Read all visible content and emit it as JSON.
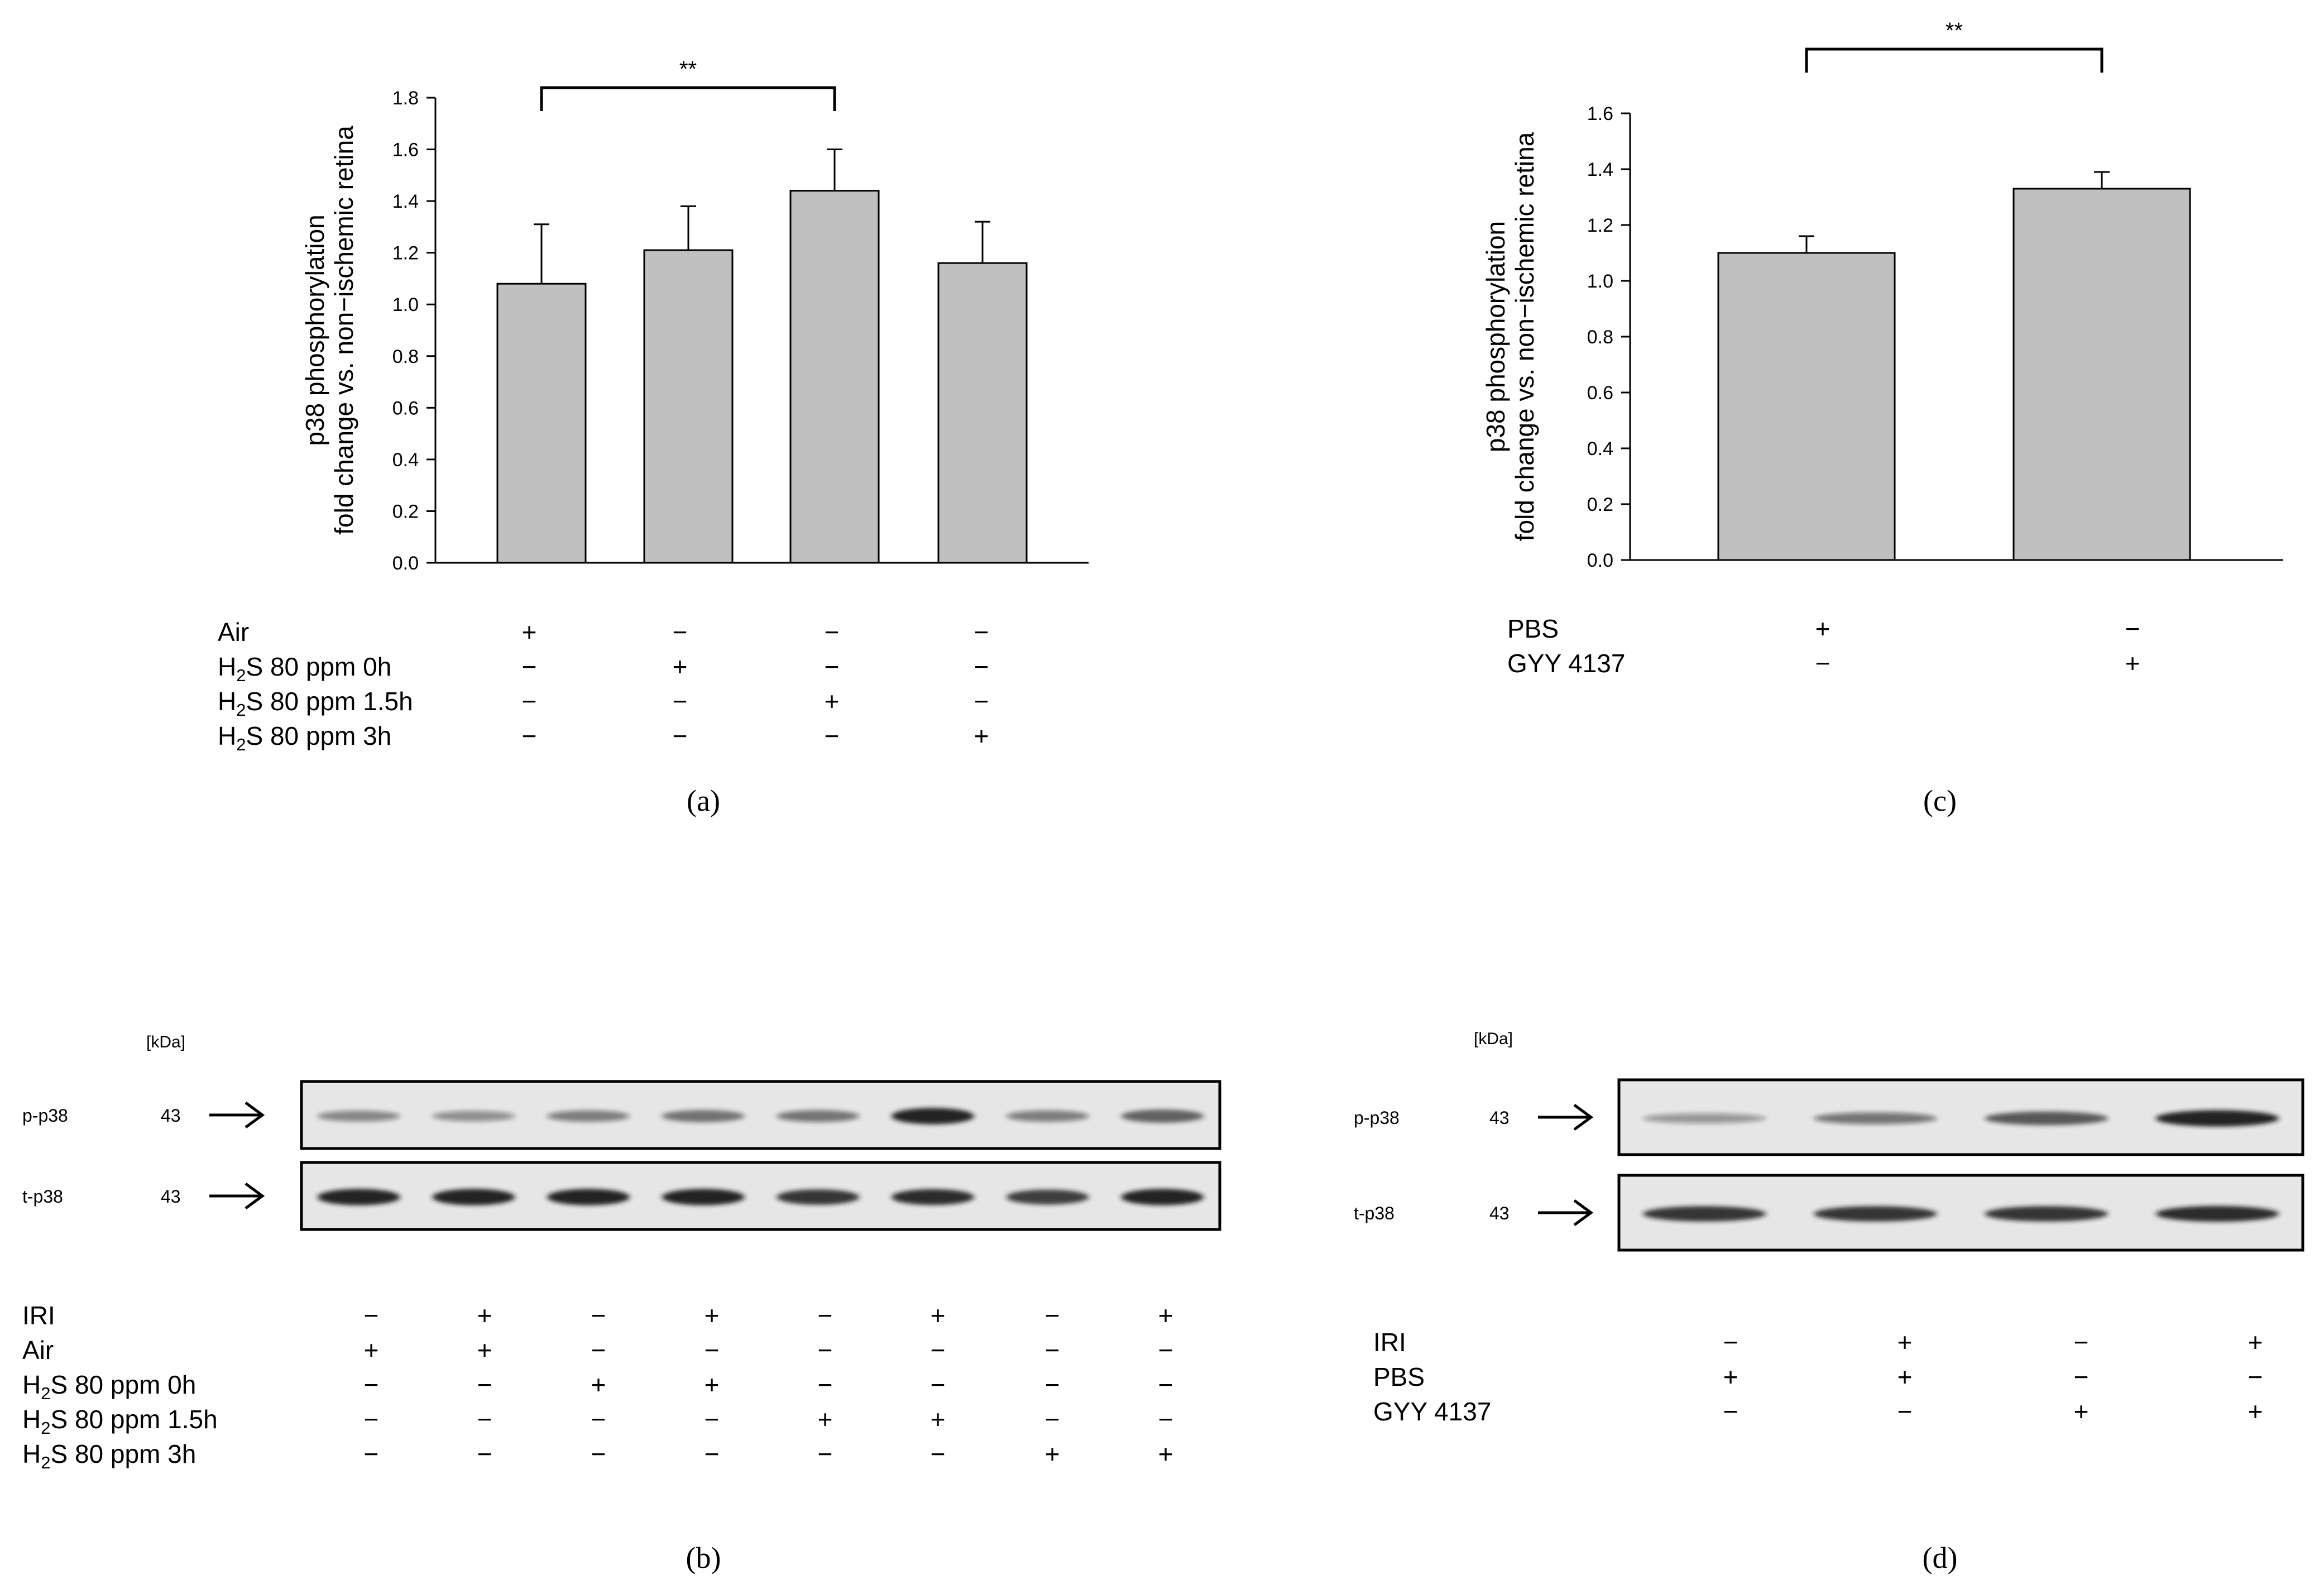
{
  "panels": {
    "a": {
      "label": "(a)"
    },
    "b": {
      "label": "(b)"
    },
    "c": {
      "label": "(c)"
    },
    "d": {
      "label": "(d)"
    }
  },
  "significance_marker": "**",
  "colors": {
    "bar_fill": "#c0c0c0",
    "axis": "#000000",
    "blot_bg": "#e6e6e6",
    "band": "#1a1a1a"
  },
  "chart_data": [
    {
      "type": "bar",
      "panel": "a",
      "ylabel_lines": [
        "p38 phosphorylation",
        "fold change vs. non−ischemic retina"
      ],
      "xlabel": "",
      "ylim": [
        0,
        1.8
      ],
      "yticks": [
        "0.0",
        "0.2",
        "0.4",
        "0.6",
        "0.8",
        "1.0",
        "1.2",
        "1.4",
        "1.6",
        "1.8"
      ],
      "categories": [
        "1",
        "2",
        "3",
        "4"
      ],
      "values": [
        1.08,
        1.21,
        1.44,
        1.16
      ],
      "errors": [
        0.23,
        0.17,
        0.16,
        0.16
      ],
      "significance": {
        "from": 0,
        "to": 2,
        "label": "**"
      },
      "conditions": [
        {
          "sub": "",
          "name": "Air",
          "marks": [
            "+",
            "−",
            "−",
            "−"
          ]
        },
        {
          "sub": "2",
          "name": "H₂S 80 ppm 0h",
          "pre": "H",
          "post": "S 80 ppm 0h",
          "marks": [
            "−",
            "+",
            "−",
            "−"
          ]
        },
        {
          "sub": "2",
          "name": "H₂S 80 ppm 1.5h",
          "pre": "H",
          "post": "S 80 ppm 1.5h",
          "marks": [
            "−",
            "−",
            "+",
            "−"
          ]
        },
        {
          "sub": "2",
          "name": "H₂S 80 ppm 3h",
          "pre": "H",
          "post": "S 80 ppm 3h",
          "marks": [
            "−",
            "−",
            "−",
            "+"
          ]
        }
      ]
    },
    {
      "type": "bar",
      "panel": "c",
      "ylabel_lines": [
        "p38 phosphorylation",
        "fold change vs. non−ischemic retina"
      ],
      "xlabel": "",
      "ylim": [
        0,
        1.6
      ],
      "yticks": [
        "0.0",
        "0.2",
        "0.4",
        "0.6",
        "0.8",
        "1.0",
        "1.2",
        "1.4",
        "1.6"
      ],
      "categories": [
        "1",
        "2"
      ],
      "values": [
        1.1,
        1.33
      ],
      "errors": [
        0.06,
        0.06
      ],
      "significance": {
        "from": 0,
        "to": 1,
        "label": "**"
      },
      "conditions": [
        {
          "sub": "",
          "name": "PBS",
          "marks": [
            "+",
            "−"
          ]
        },
        {
          "sub": "",
          "name": "GYY 4137",
          "marks": [
            "−",
            "+"
          ]
        }
      ]
    }
  ],
  "blots": {
    "b": {
      "unit": "[kDa]",
      "rows": [
        {
          "protein": "p-p38",
          "kda": "43",
          "intensity": [
            0.35,
            0.3,
            0.4,
            0.5,
            0.45,
            0.95,
            0.4,
            0.6
          ]
        },
        {
          "protein": "t-p38",
          "kda": "43",
          "intensity": [
            0.95,
            0.95,
            0.95,
            0.95,
            0.85,
            0.9,
            0.8,
            0.95
          ]
        }
      ],
      "conditions": [
        {
          "pre": "IRI",
          "sub": "",
          "post": "",
          "marks": [
            "−",
            "+",
            "−",
            "+",
            "−",
            "+",
            "−",
            "+"
          ]
        },
        {
          "pre": "Air",
          "sub": "",
          "post": "",
          "marks": [
            "+",
            "+",
            "−",
            "−",
            "−",
            "−",
            "−",
            "−"
          ]
        },
        {
          "pre": "H",
          "sub": "2",
          "post": "S 80 ppm 0h",
          "marks": [
            "−",
            "−",
            "+",
            "+",
            "−",
            "−",
            "−",
            "−"
          ]
        },
        {
          "pre": "H",
          "sub": "2",
          "post": "S 80 ppm 1.5h",
          "marks": [
            "−",
            "−",
            "−",
            "−",
            "+",
            "+",
            "−",
            "−"
          ]
        },
        {
          "pre": "H",
          "sub": "2",
          "post": "S 80 ppm 3h",
          "marks": [
            "−",
            "−",
            "−",
            "−",
            "−",
            "−",
            "+",
            "+"
          ]
        }
      ]
    },
    "d": {
      "unit": "[kDa]",
      "rows": [
        {
          "protein": "p-p38",
          "kda": "43",
          "intensity": [
            0.25,
            0.45,
            0.65,
            0.95
          ]
        },
        {
          "protein": "t-p38",
          "kda": "43",
          "intensity": [
            0.85,
            0.85,
            0.85,
            0.9
          ]
        }
      ],
      "conditions": [
        {
          "pre": "IRI",
          "sub": "",
          "post": "",
          "marks": [
            "−",
            "+",
            "−",
            "+"
          ]
        },
        {
          "pre": "PBS",
          "sub": "",
          "post": "",
          "marks": [
            "+",
            "+",
            "−",
            "−"
          ]
        },
        {
          "pre": "GYY 4137",
          "sub": "",
          "post": "",
          "marks": [
            "−",
            "−",
            "+",
            "+"
          ]
        }
      ]
    }
  }
}
